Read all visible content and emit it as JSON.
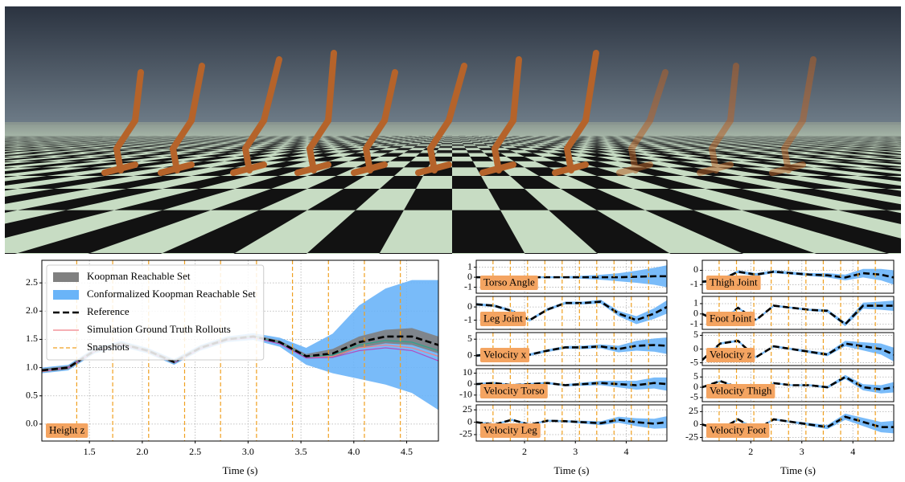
{
  "chart_data": [
    {
      "type": "line",
      "title": "Height z",
      "xlabel": "Time (s)",
      "legend": "upper left",
      "grid": true,
      "xlim": [
        1.05,
        4.8
      ],
      "ylim": [
        -0.3,
        2.9
      ],
      "xticks": [
        1.5,
        {
          "value": 2,
          "label": "2.0"
        },
        2.5,
        {
          "value": 3,
          "label": "3.0"
        },
        3.5,
        {
          "value": 4,
          "label": "4.0"
        },
        4.5
      ],
      "yticks": [
        {
          "value": 0,
          "label": "0.0"
        },
        0.5,
        {
          "value": 1,
          "label": "1.0"
        },
        1.5,
        {
          "value": 2,
          "label": "2.0"
        },
        2.5
      ],
      "x": [
        1.05,
        1.3,
        1.55,
        1.8,
        2.05,
        2.3,
        2.55,
        2.8,
        3.05,
        3.3,
        3.55,
        3.8,
        4.05,
        4.3,
        4.55,
        4.8
      ],
      "bands": [
        {
          "name": "Koopman Reachable Set",
          "color": "#808080",
          "lower": [
            0.92,
            0.97,
            1.27,
            1.39,
            1.27,
            1.07,
            1.32,
            1.47,
            1.52,
            1.42,
            1.16,
            1.17,
            1.35,
            1.43,
            1.4,
            1.25
          ],
          "upper": [
            0.98,
            1.03,
            1.33,
            1.45,
            1.33,
            1.13,
            1.38,
            1.53,
            1.58,
            1.48,
            1.24,
            1.33,
            1.55,
            1.67,
            1.7,
            1.55
          ]
        },
        {
          "name": "Conformalized Koopman Reachable Set",
          "color": "#6ab4f8",
          "lower": [
            0.9,
            0.95,
            1.25,
            1.37,
            1.25,
            1.05,
            1.3,
            1.45,
            1.49,
            1.37,
            1.05,
            0.9,
            0.8,
            0.7,
            0.55,
            0.25
          ],
          "upper": [
            1.0,
            1.05,
            1.35,
            1.47,
            1.35,
            1.15,
            1.4,
            1.55,
            1.61,
            1.53,
            1.35,
            1.6,
            2.1,
            2.4,
            2.55,
            2.55
          ]
        }
      ],
      "series": [
        {
          "name": "Reference",
          "color": "#000000",
          "dash": true,
          "values": [
            0.95,
            1.0,
            1.3,
            1.42,
            1.3,
            1.1,
            1.35,
            1.5,
            1.55,
            1.45,
            1.2,
            1.25,
            1.45,
            1.55,
            1.55,
            1.4
          ]
        },
        {
          "name": "Simulation Ground Truth Rollouts",
          "color": "#f07f86",
          "values": [
            0.93,
            1.0,
            1.3,
            1.41,
            1.3,
            1.1,
            1.35,
            1.5,
            1.54,
            1.43,
            1.18,
            1.2,
            1.35,
            1.4,
            1.35,
            1.2
          ]
        },
        {
          "color": "#2ca58d",
          "values": [
            0.95,
            1.0,
            1.3,
            1.42,
            1.3,
            1.1,
            1.35,
            1.5,
            1.55,
            1.44,
            1.19,
            1.22,
            1.4,
            1.48,
            1.45,
            1.3
          ]
        },
        {
          "color": "#b04fc0",
          "values": [
            0.94,
            1.0,
            1.29,
            1.41,
            1.29,
            1.09,
            1.34,
            1.49,
            1.53,
            1.42,
            1.17,
            1.18,
            1.3,
            1.35,
            1.3,
            1.12
          ]
        }
      ],
      "snapshots": {
        "name": "Snapshots",
        "color": "#f0a020",
        "x": [
          1.38,
          1.72,
          2.06,
          2.4,
          2.74,
          3.08,
          3.42,
          3.76,
          4.1,
          4.44
        ]
      }
    },
    {
      "type": "line",
      "title": "Torso Angle",
      "xlim": [
        1.05,
        4.8
      ],
      "ylim": [
        -1.6,
        1.7
      ],
      "yticks": [
        -1,
        0,
        1
      ],
      "x": [
        1.05,
        1.4,
        1.75,
        2.1,
        2.45,
        2.8,
        3.15,
        3.5,
        3.85,
        4.2,
        4.55,
        4.8
      ],
      "bands": [
        {
          "color": "#6ab4f8",
          "lower": [
            -0.1,
            -0.1,
            -0.1,
            -0.1,
            -0.1,
            -0.1,
            -0.15,
            -0.25,
            -0.4,
            -0.55,
            -0.75,
            -1.0
          ],
          "upper": [
            0.1,
            0.1,
            0.1,
            0.1,
            0.1,
            0.1,
            0.15,
            0.25,
            0.4,
            0.65,
            0.95,
            1.2
          ]
        }
      ],
      "series": [
        {
          "color": "#000000",
          "dash": true,
          "values": [
            0,
            0,
            0,
            0,
            0,
            0,
            0,
            0,
            0,
            0.05,
            0.1,
            0.1
          ]
        }
      ]
    },
    {
      "type": "line",
      "title": "Leg Joint",
      "xlim": [
        1.05,
        4.8
      ],
      "ylim": [
        -1.7,
        0.8
      ],
      "yticks": [
        -1,
        0
      ],
      "x": [
        1.05,
        1.4,
        1.75,
        2.1,
        2.45,
        2.8,
        3.15,
        3.5,
        3.85,
        4.2,
        4.55,
        4.8
      ],
      "bands": [
        {
          "color": "#6ab4f8",
          "lower": [
            0.1,
            0,
            -0.4,
            -1.1,
            -0.3,
            0.2,
            0.2,
            0.25,
            -0.7,
            -1.3,
            -0.9,
            -0.5
          ],
          "upper": [
            0.3,
            0.2,
            -0.2,
            -0.9,
            -0.1,
            0.4,
            0.4,
            0.55,
            -0.3,
            -0.7,
            -0.1,
            0.5
          ]
        }
      ],
      "series": [
        {
          "color": "#000000",
          "dash": true,
          "values": [
            0.2,
            0.1,
            -0.3,
            -1.0,
            -0.2,
            0.3,
            0.3,
            0.4,
            -0.5,
            -1.0,
            -0.5,
            0.0
          ]
        }
      ]
    },
    {
      "type": "line",
      "title": "Velocity x",
      "xlim": [
        1.05,
        4.8
      ],
      "ylim": [
        -3,
        7
      ],
      "yticks": [
        0,
        5
      ],
      "x": [
        1.05,
        1.4,
        1.75,
        2.1,
        2.45,
        2.8,
        3.15,
        3.5,
        3.85,
        4.2,
        4.55,
        4.8
      ],
      "bands": [
        {
          "color": "#6ab4f8",
          "lower": [
            -0.4,
            0.1,
            0.1,
            -0.1,
            1.1,
            2.1,
            2,
            2.2,
            1,
            1.5,
            1.2,
            0.5
          ],
          "upper": [
            0.4,
            0.9,
            0.9,
            0.7,
            1.9,
            2.9,
            3,
            3.4,
            3,
            4.5,
            5.2,
            5.5
          ]
        }
      ],
      "series": [
        {
          "color": "#000000",
          "dash": true,
          "values": [
            0,
            0.5,
            0.5,
            0.3,
            1.5,
            2.5,
            2.5,
            2.8,
            2,
            3,
            3.2,
            3
          ]
        }
      ]
    },
    {
      "type": "line",
      "title": "Velocity Torso",
      "xlim": [
        1.05,
        4.8
      ],
      "ylim": [
        -16,
        14
      ],
      "yticks": [
        -10,
        0,
        10
      ],
      "x": [
        1.05,
        1.4,
        1.75,
        2.1,
        2.45,
        2.8,
        3.15,
        3.5,
        3.85,
        4.2,
        4.55,
        4.8
      ],
      "bands": [
        {
          "color": "#6ab4f8",
          "lower": [
            -1,
            0,
            -2,
            -1,
            0,
            -2,
            -1.5,
            -1,
            -3,
            -5,
            -4,
            -6
          ],
          "upper": [
            1,
            2,
            0,
            1,
            2,
            0,
            1.5,
            3,
            3,
            3,
            6,
            6
          ]
        }
      ],
      "series": [
        {
          "color": "#000000",
          "dash": true,
          "values": [
            0,
            1,
            -1,
            0,
            1,
            -1,
            0,
            1,
            0,
            -1,
            1,
            0
          ]
        }
      ]
    },
    {
      "type": "line",
      "title": "Velocity Leg",
      "xlabel": "Time (s)",
      "xlim": [
        1.05,
        4.8
      ],
      "ylim": [
        -38,
        35
      ],
      "yticks": [
        -25,
        0,
        25
      ],
      "xticks": [
        2,
        3,
        4
      ],
      "x": [
        1.05,
        1.4,
        1.75,
        2.1,
        2.45,
        2.8,
        3.15,
        3.5,
        3.85,
        4.2,
        4.55,
        4.8
      ],
      "bands": [
        {
          "color": "#6ab4f8",
          "lower": [
            -2,
            -7,
            3,
            -7,
            1,
            0,
            -3,
            -6,
            -1,
            -8,
            -13,
            -12
          ],
          "upper": [
            2,
            -3,
            7,
            -3,
            5,
            4,
            3,
            2,
            11,
            8,
            7,
            12
          ]
        }
      ],
      "series": [
        {
          "color": "#000000",
          "dash": true,
          "values": [
            0,
            -5,
            5,
            -5,
            3,
            2,
            0,
            -2,
            5,
            0,
            -3,
            0
          ]
        }
      ]
    },
    {
      "type": "line",
      "title": "Thigh Joint",
      "xlim": [
        1.05,
        4.8
      ],
      "ylim": [
        -1.6,
        0.7
      ],
      "yticks": [
        -1,
        0
      ],
      "x": [
        1.05,
        1.4,
        1.75,
        2.1,
        2.45,
        2.8,
        3.15,
        3.5,
        3.85,
        4.2,
        4.55,
        4.8
      ],
      "bands": [
        {
          "color": "#6ab4f8",
          "lower": [
            -0.9,
            -0.8,
            -0.2,
            -0.4,
            -0.2,
            -0.3,
            -0.4,
            -0.5,
            -0.7,
            -0.5,
            -0.7,
            -1.0
          ],
          "upper": [
            -0.7,
            -0.6,
            0,
            -0.2,
            0,
            -0.1,
            -0.2,
            -0.2,
            -0.3,
            0.1,
            0.1,
            0
          ]
        }
      ],
      "series": [
        {
          "color": "#000000",
          "dash": true,
          "values": [
            -0.8,
            -0.7,
            -0.1,
            -0.3,
            -0.1,
            -0.2,
            -0.3,
            -0.35,
            -0.5,
            -0.2,
            -0.3,
            -0.5
          ]
        }
      ]
    },
    {
      "type": "line",
      "title": "Foot Joint",
      "xlim": [
        1.05,
        4.8
      ],
      "ylim": [
        -1.5,
        1.7
      ],
      "yticks": [
        -1,
        0,
        1
      ],
      "x": [
        1.05,
        1.4,
        1.75,
        2.1,
        2.45,
        2.8,
        3.15,
        3.5,
        3.85,
        4.2,
        4.55,
        4.8
      ],
      "bands": [
        {
          "color": "#6ab4f8",
          "lower": [
            -0.1,
            -0.9,
            0.5,
            -0.7,
            0.7,
            0.5,
            0.3,
            0.15,
            -1.2,
            0.5,
            0.4,
            0.3
          ],
          "upper": [
            0.1,
            -0.7,
            0.7,
            -0.5,
            0.9,
            0.7,
            0.5,
            0.45,
            -0.8,
            1.1,
            1.2,
            1.3
          ]
        }
      ],
      "series": [
        {
          "color": "#000000",
          "dash": true,
          "values": [
            0,
            -0.8,
            0.6,
            -0.6,
            0.8,
            0.6,
            0.4,
            0.3,
            -1.0,
            0.8,
            0.8,
            0.8
          ]
        }
      ]
    },
    {
      "type": "line",
      "title": "Velocity z",
      "xlim": [
        1.05,
        4.8
      ],
      "ylim": [
        -6,
        6
      ],
      "yticks": [
        -5,
        0,
        5
      ],
      "x": [
        1.05,
        1.4,
        1.75,
        2.1,
        2.45,
        2.8,
        3.15,
        3.5,
        3.85,
        4.2,
        4.55,
        4.8
      ],
      "bands": [
        {
          "color": "#6ab4f8",
          "lower": [
            -4.4,
            1.6,
            2.6,
            -3.4,
            0.6,
            -0.4,
            -1.5,
            -2.6,
            1,
            -0.5,
            -2,
            -4.5
          ],
          "upper": [
            -3.6,
            2.4,
            3.4,
            -2.6,
            1.4,
            0.4,
            -0.5,
            -1.4,
            3,
            2.5,
            2,
            0.5
          ]
        }
      ],
      "series": [
        {
          "color": "#000000",
          "dash": true,
          "values": [
            -4,
            2,
            3,
            -3,
            1,
            0,
            -1,
            -2,
            2,
            1,
            0,
            -2
          ]
        }
      ]
    },
    {
      "type": "line",
      "title": "Velocity Thigh",
      "xlim": [
        1.05,
        4.8
      ],
      "ylim": [
        -7,
        9
      ],
      "yticks": [
        -5,
        0,
        5
      ],
      "x": [
        1.05,
        1.4,
        1.75,
        2.1,
        2.45,
        2.8,
        3.15,
        3.5,
        3.85,
        4.2,
        4.55,
        4.8
      ],
      "bands": [
        {
          "color": "#6ab4f8",
          "lower": [
            -0.4,
            2.6,
            -0.4,
            -3.4,
            1.6,
            0.6,
            0.5,
            -0.6,
            4,
            -1.5,
            -3,
            -2.5
          ],
          "upper": [
            0.4,
            3.4,
            0.4,
            -2.6,
            2.4,
            1.4,
            1.5,
            0.6,
            6,
            1.5,
            1,
            2.5
          ]
        }
      ],
      "series": [
        {
          "color": "#000000",
          "dash": true,
          "values": [
            0,
            3,
            0,
            -3,
            2,
            1,
            1,
            0,
            5,
            0,
            -1,
            0
          ]
        }
      ]
    },
    {
      "type": "line",
      "title": "Velocity Foot",
      "xlabel": "Time (s)",
      "xlim": [
        1.05,
        4.8
      ],
      "ylim": [
        -32,
        38
      ],
      "yticks": [
        -25,
        0,
        25
      ],
      "xticks": [
        2,
        3,
        4
      ],
      "x": [
        1.05,
        1.4,
        1.75,
        2.1,
        2.45,
        2.8,
        3.15,
        3.5,
        3.85,
        4.2,
        4.55,
        4.8
      ],
      "bands": [
        {
          "color": "#6ab4f8",
          "lower": [
            -2,
            -12,
            8,
            -12,
            8,
            3,
            -3,
            -9,
            9,
            -3,
            -15,
            -17
          ],
          "upper": [
            2,
            -8,
            12,
            -8,
            12,
            7,
            3,
            -1,
            21,
            13,
            5,
            7
          ]
        }
      ],
      "series": [
        {
          "color": "#000000",
          "dash": true,
          "values": [
            0,
            -10,
            10,
            -10,
            10,
            5,
            0,
            -5,
            15,
            5,
            -5,
            -5
          ]
        }
      ]
    }
  ]
}
